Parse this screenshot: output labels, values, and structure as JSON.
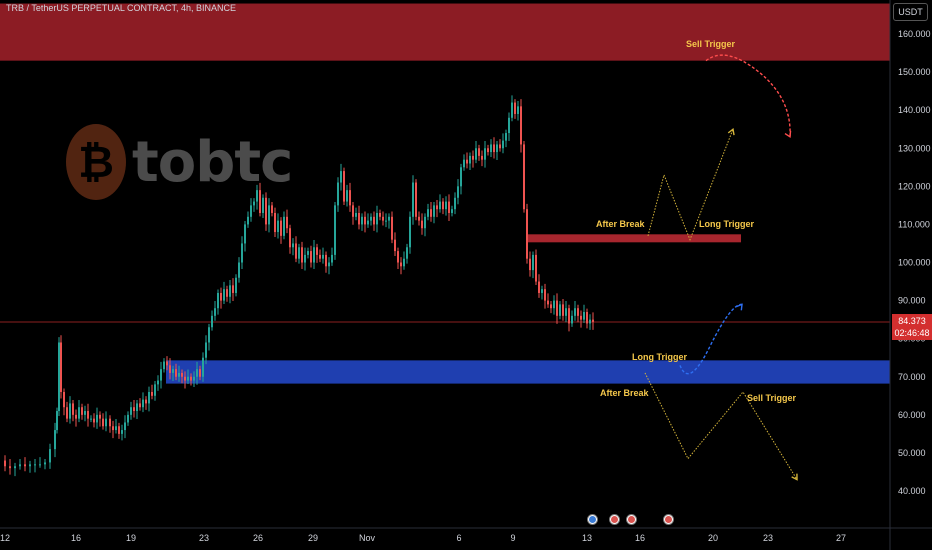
{
  "header": {
    "symbol_line": "TRB / TetherUS PERPETUAL CONTRACT, 4h, BINANCE"
  },
  "axis_unit": "USDT",
  "logo": {
    "text": "tobtc"
  },
  "price_tag": {
    "price": "84.373",
    "countdown": "02:46:48"
  },
  "colors": {
    "bull": "#26a69a",
    "bear": "#ef5350",
    "resistance_zone": "#8c1c24",
    "support_zone": "#1f3fb0",
    "annotation": "#f5c84b",
    "blue_path": "#2e6ff2",
    "red_path": "#ff4d4d"
  },
  "annotations": {
    "sell_trigger_top": "Sell Trigger",
    "after_break_top": "After Break",
    "long_trigger_top": "Long Trigger",
    "long_trigger_mid": "Long Trigger",
    "after_break_bottom": "After Break",
    "sell_trigger_bottom": "Sell Trigger"
  },
  "events": [
    {
      "icon": "lightning-event-icon",
      "type": "blue"
    },
    {
      "icon": "us-flag-event-icon",
      "type": "red"
    },
    {
      "icon": "us-flag-event-icon",
      "type": "red"
    },
    {
      "icon": "us-flag-event-icon",
      "type": "red"
    }
  ],
  "chart_data": {
    "type": "candlestick",
    "title": "TRB / TetherUS PERPETUAL CONTRACT, 4h, BINANCE",
    "ylim": [
      35,
      168
    ],
    "y_ticks": [
      40,
      50,
      60,
      70,
      80,
      90,
      100,
      110,
      120,
      130,
      140,
      150,
      160
    ],
    "y_tick_labels": [
      "40.000",
      "50.000",
      "60.000",
      "70.000",
      "80.000",
      "90.000",
      "100.000",
      "110.000",
      "120.000",
      "130.000",
      "140.000",
      "150.000",
      "160.000"
    ],
    "x_tick_labels": [
      "12",
      "16",
      "19",
      "23",
      "26",
      "29",
      "Nov",
      "6",
      "9",
      "13",
      "16",
      "20",
      "23",
      "27"
    ],
    "last_price": 84.373,
    "close_path": [
      [
        0,
        48
      ],
      [
        5,
        46.5
      ],
      [
        10,
        46
      ],
      [
        15,
        46.5
      ],
      [
        20,
        47
      ],
      [
        25,
        46.5
      ],
      [
        30,
        47
      ],
      [
        35,
        47
      ],
      [
        40,
        47
      ],
      [
        45,
        47.5
      ],
      [
        50,
        51
      ],
      [
        55,
        56
      ],
      [
        57,
        61
      ],
      [
        59,
        79
      ],
      [
        61,
        66
      ],
      [
        64,
        62
      ],
      [
        67,
        59
      ],
      [
        70,
        63
      ],
      [
        73,
        60
      ],
      [
        76,
        59
      ],
      [
        79,
        62
      ],
      [
        82,
        60
      ],
      [
        85,
        61
      ],
      [
        88,
        59
      ],
      [
        91,
        59
      ],
      [
        94,
        58
      ],
      [
        97,
        60
      ],
      [
        100,
        59
      ],
      [
        103,
        57
      ],
      [
        106,
        59
      ],
      [
        110,
        57
      ],
      [
        113,
        56
      ],
      [
        116,
        57
      ],
      [
        119,
        55
      ],
      [
        122,
        56
      ],
      [
        125,
        58
      ],
      [
        128,
        60
      ],
      [
        131,
        62
      ],
      [
        134,
        61
      ],
      [
        137,
        63
      ],
      [
        140,
        62
      ],
      [
        143,
        64
      ],
      [
        146,
        63
      ],
      [
        149,
        66
      ],
      [
        152,
        65
      ],
      [
        155,
        68
      ],
      [
        158,
        69
      ],
      [
        161,
        72
      ],
      [
        164,
        74
      ],
      [
        167,
        73
      ],
      [
        170,
        71
      ],
      [
        173,
        72
      ],
      [
        176,
        70
      ],
      [
        179,
        71
      ],
      [
        182,
        70
      ],
      [
        185,
        69
      ],
      [
        188,
        70
      ],
      [
        191,
        69
      ],
      [
        194,
        70
      ],
      [
        197,
        72
      ],
      [
        200,
        70
      ],
      [
        203,
        75
      ],
      [
        206,
        79
      ],
      [
        209,
        83
      ],
      [
        212,
        86
      ],
      [
        215,
        88
      ],
      [
        218,
        92
      ],
      [
        221,
        90
      ],
      [
        224,
        93
      ],
      [
        227,
        91
      ],
      [
        230,
        94
      ],
      [
        233,
        92
      ],
      [
        236,
        96
      ],
      [
        239,
        100
      ],
      [
        242,
        105
      ],
      [
        245,
        110
      ],
      [
        248,
        112
      ],
      [
        251,
        115
      ],
      [
        254,
        116
      ],
      [
        257,
        119
      ],
      [
        260,
        113
      ],
      [
        263,
        117
      ],
      [
        266,
        110
      ],
      [
        269,
        115
      ],
      [
        272,
        113
      ],
      [
        275,
        108
      ],
      [
        278,
        111
      ],
      [
        281,
        107
      ],
      [
        284,
        112
      ],
      [
        287,
        109
      ],
      [
        290,
        104
      ],
      [
        293,
        105
      ],
      [
        296,
        101
      ],
      [
        299,
        104
      ],
      [
        302,
        100
      ],
      [
        305,
        102
      ],
      [
        308,
        103
      ],
      [
        311,
        100
      ],
      [
        314,
        104
      ],
      [
        317,
        102
      ],
      [
        320,
        101
      ],
      [
        323,
        102
      ],
      [
        326,
        99
      ],
      [
        329,
        100
      ],
      [
        332,
        102
      ],
      [
        335,
        115
      ],
      [
        338,
        121
      ],
      [
        341,
        124
      ],
      [
        344,
        116
      ],
      [
        347,
        119
      ],
      [
        350,
        115
      ],
      [
        353,
        112
      ],
      [
        356,
        113
      ],
      [
        359,
        110
      ],
      [
        362,
        112
      ],
      [
        365,
        110
      ],
      [
        368,
        111
      ],
      [
        371,
        112
      ],
      [
        374,
        110
      ],
      [
        377,
        113
      ],
      [
        380,
        112
      ],
      [
        383,
        111
      ],
      [
        386,
        111
      ],
      [
        389,
        112
      ],
      [
        392,
        106
      ],
      [
        395,
        103
      ],
      [
        398,
        100
      ],
      [
        401,
        99
      ],
      [
        404,
        101
      ],
      [
        407,
        104
      ],
      [
        410,
        112
      ],
      [
        413,
        121
      ],
      [
        416,
        112
      ],
      [
        419,
        111
      ],
      [
        422,
        109
      ],
      [
        425,
        112
      ],
      [
        428,
        114
      ],
      [
        431,
        112
      ],
      [
        434,
        115
      ],
      [
        437,
        114
      ],
      [
        440,
        116
      ],
      [
        443,
        114
      ],
      [
        446,
        116
      ],
      [
        449,
        113
      ],
      [
        452,
        114
      ],
      [
        455,
        117
      ],
      [
        458,
        120
      ],
      [
        461,
        125
      ],
      [
        464,
        127
      ],
      [
        467,
        126
      ],
      [
        470,
        128
      ],
      [
        473,
        127
      ],
      [
        476,
        130
      ],
      [
        479,
        128
      ],
      [
        482,
        127
      ],
      [
        485,
        130
      ],
      [
        488,
        129
      ],
      [
        491,
        131
      ],
      [
        494,
        129
      ],
      [
        497,
        131
      ],
      [
        500,
        130
      ],
      [
        503,
        132
      ],
      [
        506,
        134
      ],
      [
        509,
        138
      ],
      [
        512,
        142
      ],
      [
        515,
        139
      ],
      [
        518,
        141
      ],
      [
        521,
        131
      ],
      [
        524,
        114
      ],
      [
        527,
        101
      ],
      [
        530,
        98
      ],
      [
        533,
        102
      ],
      [
        536,
        95
      ],
      [
        539,
        92
      ],
      [
        542,
        93
      ],
      [
        545,
        90
      ],
      [
        548,
        89
      ],
      [
        551,
        88
      ],
      [
        554,
        90
      ],
      [
        557,
        86
      ],
      [
        560,
        89
      ],
      [
        563,
        86
      ],
      [
        566,
        88
      ],
      [
        569,
        84
      ],
      [
        572,
        86
      ],
      [
        575,
        88
      ],
      [
        578,
        86
      ],
      [
        581,
        85
      ],
      [
        584,
        87
      ],
      [
        587,
        84
      ],
      [
        590,
        85
      ],
      [
        593,
        84.4
      ]
    ],
    "zones": [
      {
        "name": "resistance",
        "y_top": 168,
        "y_bottom": 153
      },
      {
        "name": "support",
        "y_top": 74.3,
        "y_bottom": 68.2
      },
      {
        "name": "breakout-level",
        "y_top": 107.4,
        "y_bottom": 105.3
      }
    ],
    "last_price_line": 84.373,
    "paths": {
      "yellow_top": [
        [
          648,
          107
        ],
        [
          664,
          123
        ],
        [
          690,
          106
        ],
        [
          733,
          135
        ]
      ],
      "yellow_bottom": [
        [
          645,
          71
        ],
        [
          688,
          48.5
        ],
        [
          743,
          66
        ],
        [
          797,
          43
        ]
      ],
      "blue_arrow": [
        [
          680,
          73
        ],
        [
          689,
          70.5
        ],
        [
          710,
          78
        ],
        [
          742,
          89
        ]
      ],
      "red_arrow": [
        [
          706,
          153
        ],
        [
          726,
          157
        ],
        [
          759,
          150
        ],
        [
          790,
          133
        ]
      ]
    }
  }
}
